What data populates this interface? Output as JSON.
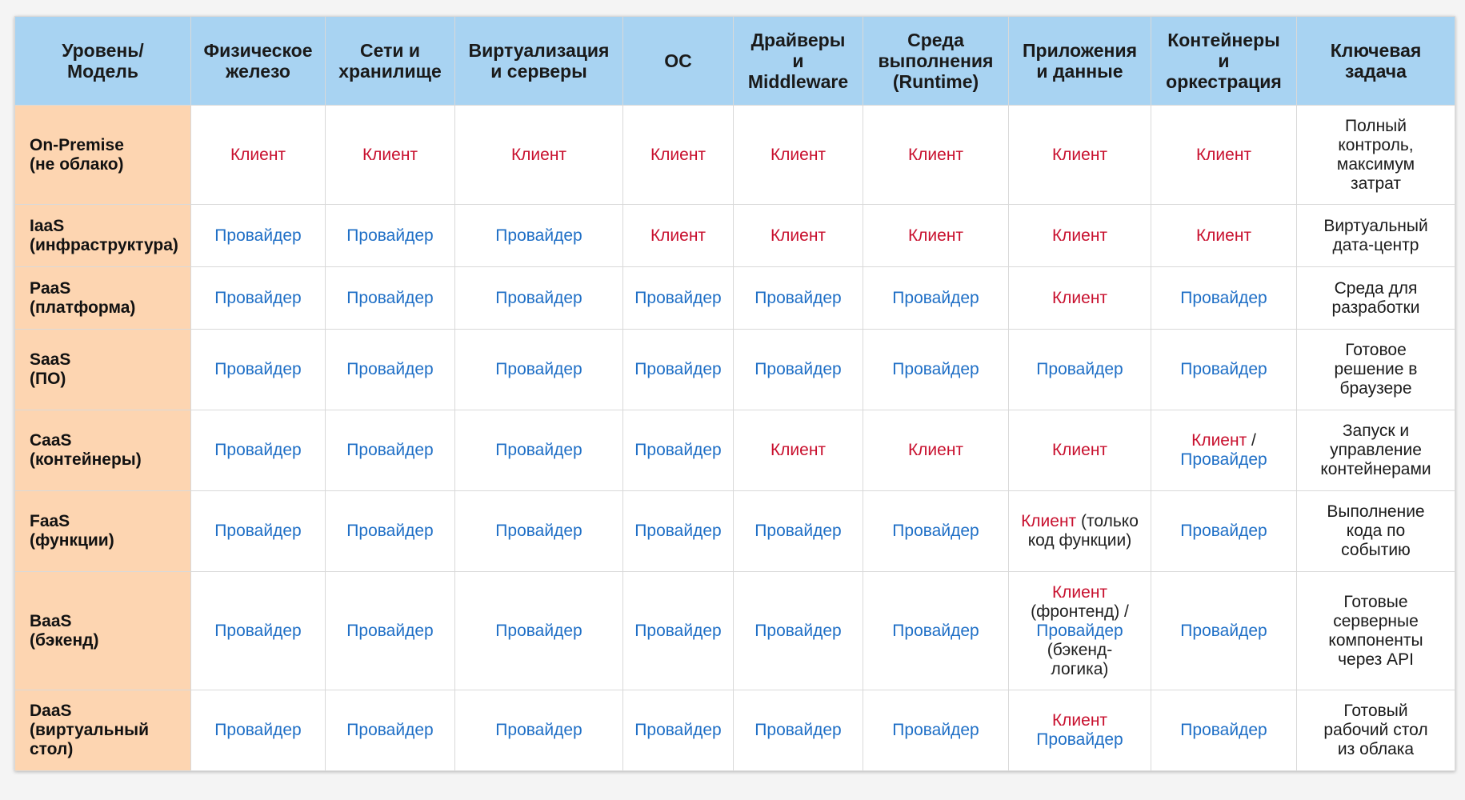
{
  "header": [
    "Уровень/ Модель",
    "Физическое железо",
    "Сети и хранилище",
    "Виртуализация и серверы",
    "ОС",
    "Драйверы и Middleware",
    "Среда выполнения (Runtime)",
    "Приложения и данные",
    "Контейнеры и оркестрация",
    "Ключевая задача"
  ],
  "header_lines": [
    [
      "Уровень/",
      "Модель"
    ],
    [
      "Физическое",
      "железо"
    ],
    [
      "Сети и",
      "хранилище"
    ],
    [
      "Виртуализация",
      "и серверы"
    ],
    [
      "ОС"
    ],
    [
      "Драйверы",
      "и",
      "Middleware"
    ],
    [
      "Среда",
      "выполнения",
      "(Runtime)"
    ],
    [
      "Приложения",
      "и данные"
    ],
    [
      "Контейнеры",
      "и",
      "оркестрация"
    ],
    [
      "Ключевая",
      "задача"
    ]
  ],
  "legend_colors": {
    "client": "#c8102e",
    "provider": "#1f6fc6",
    "header_bg": "#a8d3f2",
    "model_bg": "#fdd5b1"
  },
  "rows": [
    {
      "model": [
        "On-Premise",
        "(не облако)"
      ],
      "cells": [
        [
          [
            "Клиент",
            "client"
          ]
        ],
        [
          [
            "Клиент",
            "client"
          ]
        ],
        [
          [
            "Клиент",
            "client"
          ]
        ],
        [
          [
            "Клиент",
            "client"
          ]
        ],
        [
          [
            "Клиент",
            "client"
          ]
        ],
        [
          [
            "Клиент",
            "client"
          ]
        ],
        [
          [
            "Клиент",
            "client"
          ]
        ],
        [
          [
            "Клиент",
            "client"
          ]
        ]
      ],
      "task": [
        "Полный",
        "контроль,",
        "максимум",
        "затрат"
      ]
    },
    {
      "model": [
        "IaaS",
        "(инфраструктура)"
      ],
      "cells": [
        [
          [
            "Провайдер",
            "provider"
          ]
        ],
        [
          [
            "Провайдер",
            "provider"
          ]
        ],
        [
          [
            "Провайдер",
            "provider"
          ]
        ],
        [
          [
            "Клиент",
            "client"
          ]
        ],
        [
          [
            "Клиент",
            "client"
          ]
        ],
        [
          [
            "Клиент",
            "client"
          ]
        ],
        [
          [
            "Клиент",
            "client"
          ]
        ],
        [
          [
            "Клиент",
            "client"
          ]
        ]
      ],
      "task": [
        "Виртуальный",
        "дата-центр"
      ]
    },
    {
      "model": [
        "PaaS",
        "(платформа)"
      ],
      "cells": [
        [
          [
            "Провайдер",
            "provider"
          ]
        ],
        [
          [
            "Провайдер",
            "provider"
          ]
        ],
        [
          [
            "Провайдер",
            "provider"
          ]
        ],
        [
          [
            "Провайдер",
            "provider"
          ]
        ],
        [
          [
            "Провайдер",
            "provider"
          ]
        ],
        [
          [
            "Провайдер",
            "provider"
          ]
        ],
        [
          [
            "Клиент",
            "client"
          ]
        ],
        [
          [
            "Провайдер",
            "provider"
          ]
        ]
      ],
      "task": [
        "Среда для",
        "разработки"
      ]
    },
    {
      "model": [
        "SaaS",
        "(ПО)"
      ],
      "cells": [
        [
          [
            "Провайдер",
            "provider"
          ]
        ],
        [
          [
            "Провайдер",
            "provider"
          ]
        ],
        [
          [
            "Провайдер",
            "provider"
          ]
        ],
        [
          [
            "Провайдер",
            "provider"
          ]
        ],
        [
          [
            "Провайдер",
            "provider"
          ]
        ],
        [
          [
            "Провайдер",
            "provider"
          ]
        ],
        [
          [
            "Провайдер",
            "provider"
          ]
        ],
        [
          [
            "Провайдер",
            "provider"
          ]
        ]
      ],
      "task": [
        "Готовое",
        "решение в",
        "браузере"
      ]
    },
    {
      "model": [
        "CaaS",
        "(контейнеры)"
      ],
      "cells": [
        [
          [
            "Провайдер",
            "provider"
          ]
        ],
        [
          [
            "Провайдер",
            "provider"
          ]
        ],
        [
          [
            "Провайдер",
            "provider"
          ]
        ],
        [
          [
            "Провайдер",
            "provider"
          ]
        ],
        [
          [
            "Клиент",
            "client"
          ]
        ],
        [
          [
            "Клиент",
            "client"
          ]
        ],
        [
          [
            "Клиент",
            "client"
          ]
        ],
        [
          [
            "Клиент",
            "client"
          ],
          [
            " /",
            "plain"
          ],
          [
            "\n",
            "br"
          ],
          [
            "Провайдер",
            "provider"
          ]
        ]
      ],
      "task": [
        "Запуск и",
        "управление",
        "контейнерами"
      ]
    },
    {
      "model": [
        "FaaS",
        "(функции)"
      ],
      "cells": [
        [
          [
            "Провайдер",
            "provider"
          ]
        ],
        [
          [
            "Провайдер",
            "provider"
          ]
        ],
        [
          [
            "Провайдер",
            "provider"
          ]
        ],
        [
          [
            "Провайдер",
            "provider"
          ]
        ],
        [
          [
            "Провайдер",
            "provider"
          ]
        ],
        [
          [
            "Провайдер",
            "provider"
          ]
        ],
        [
          [
            "Клиент",
            "client"
          ],
          [
            " (только",
            "plain"
          ],
          [
            "\n",
            "br"
          ],
          [
            "код функции)",
            "plain"
          ]
        ],
        [
          [
            "Провайдер",
            "provider"
          ]
        ]
      ],
      "task": [
        "Выполнение",
        "кода по",
        "событию"
      ]
    },
    {
      "model": [
        "BaaS",
        "(бэкенд)"
      ],
      "cells": [
        [
          [
            "Провайдер",
            "provider"
          ]
        ],
        [
          [
            "Провайдер",
            "provider"
          ]
        ],
        [
          [
            "Провайдер",
            "provider"
          ]
        ],
        [
          [
            "Провайдер",
            "provider"
          ]
        ],
        [
          [
            "Провайдер",
            "provider"
          ]
        ],
        [
          [
            "Провайдер",
            "provider"
          ]
        ],
        [
          [
            "Клиент",
            "client"
          ],
          [
            "\n",
            "br"
          ],
          [
            "(фронтенд) /",
            "plain"
          ],
          [
            "\n",
            "br"
          ],
          [
            "Провайдер",
            "provider"
          ],
          [
            "\n",
            "br"
          ],
          [
            "(бэкенд-",
            "plain"
          ],
          [
            "\n",
            "br"
          ],
          [
            "логика)",
            "plain"
          ]
        ],
        [
          [
            "Провайдер",
            "provider"
          ]
        ]
      ],
      "task": [
        "Готовые",
        "серверные",
        "компоненты",
        "через API"
      ]
    },
    {
      "model": [
        "DaaS",
        "(виртуальный",
        "стол)"
      ],
      "cells": [
        [
          [
            "Провайдер",
            "provider"
          ]
        ],
        [
          [
            "Провайдер",
            "provider"
          ]
        ],
        [
          [
            "Провайдер",
            "provider"
          ]
        ],
        [
          [
            "Провайдер",
            "provider"
          ]
        ],
        [
          [
            "Провайдер",
            "provider"
          ]
        ],
        [
          [
            "Провайдер",
            "provider"
          ]
        ],
        [
          [
            "Клиент",
            "client"
          ],
          [
            "\n",
            "br"
          ],
          [
            "Провайдер",
            "provider"
          ]
        ],
        [
          [
            "Провайдер",
            "provider"
          ]
        ]
      ],
      "task": [
        "Готовый",
        "рабочий стол",
        "из облака"
      ]
    }
  ]
}
